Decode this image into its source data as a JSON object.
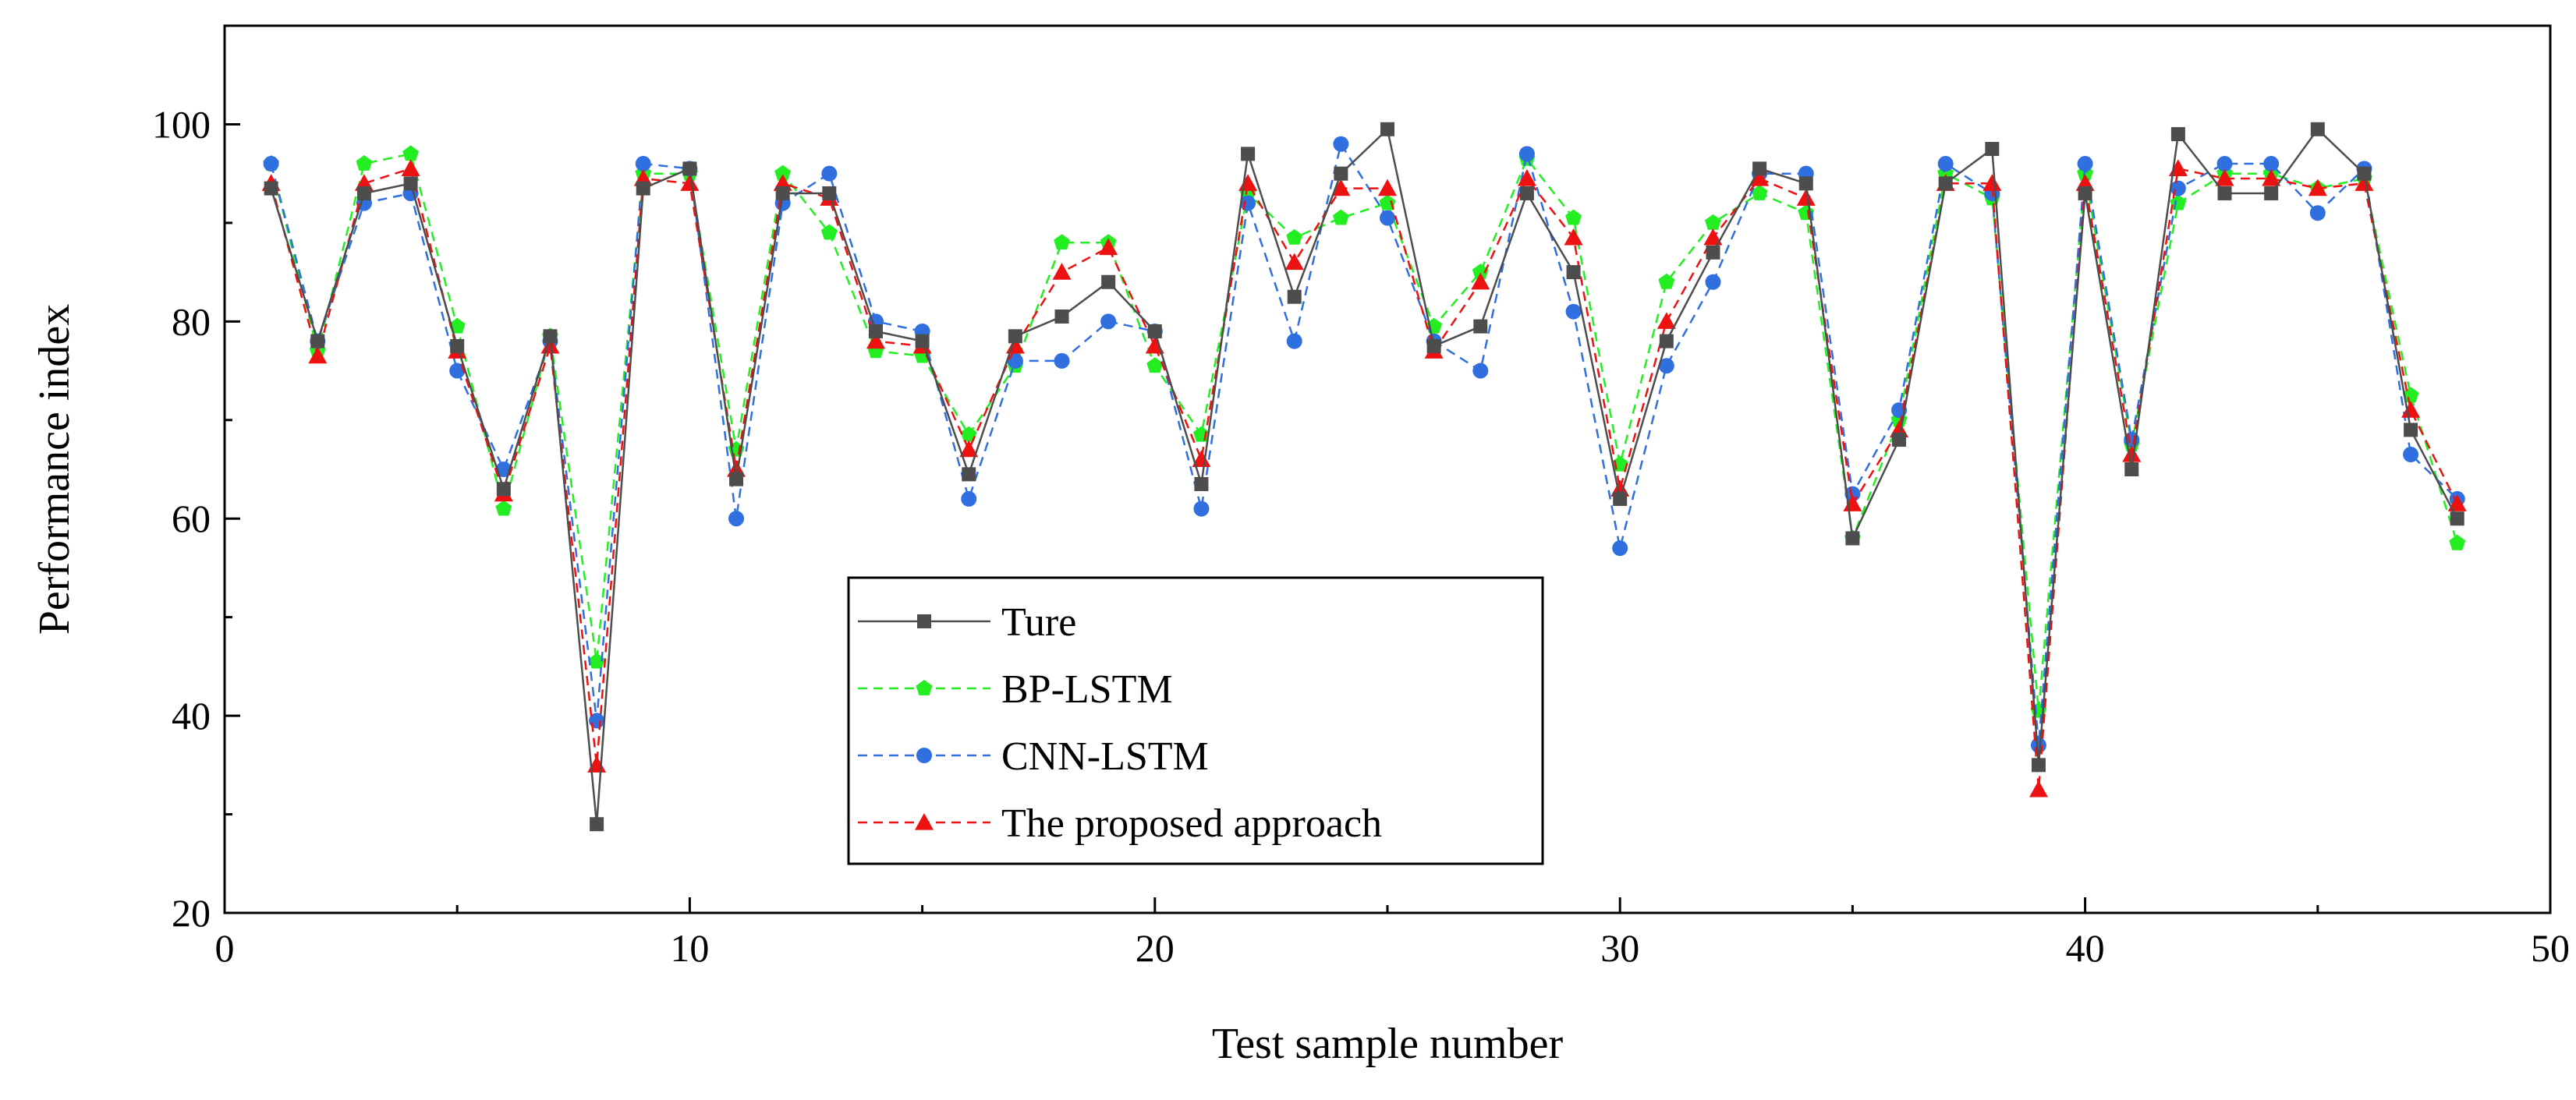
{
  "chart_data": {
    "type": "line",
    "title": "",
    "xlabel": "Test sample number",
    "ylabel": "Performance index",
    "xlim": [
      0,
      50
    ],
    "ylim": [
      20,
      110
    ],
    "xticks": [
      0,
      10,
      20,
      30,
      40,
      50
    ],
    "yticks": [
      20,
      40,
      60,
      80,
      100
    ],
    "grid": false,
    "legend_position": "bottom-center",
    "x": [
      1,
      2,
      3,
      4,
      5,
      6,
      7,
      8,
      9,
      10,
      11,
      12,
      13,
      14,
      15,
      16,
      17,
      18,
      19,
      20,
      21,
      22,
      23,
      24,
      25,
      26,
      27,
      28,
      29,
      30,
      31,
      32,
      33,
      34,
      35,
      36,
      37,
      38,
      39,
      40,
      41,
      42,
      43,
      44,
      45,
      46,
      47,
      48
    ],
    "series": [
      {
        "name": "Ture",
        "color": "#4d4d4d",
        "line_style": "solid",
        "marker": "square",
        "values": [
          93.5,
          78,
          93,
          94,
          77.5,
          63,
          78.5,
          29,
          93.5,
          95.5,
          64,
          93,
          93,
          79,
          78,
          64.5,
          78.5,
          80.5,
          84,
          79,
          63.5,
          97,
          82.5,
          95,
          99.5,
          77.5,
          79.5,
          93,
          85,
          62,
          78,
          87,
          95.5,
          94,
          58,
          68,
          94,
          97.5,
          35,
          93,
          65,
          99,
          93,
          93,
          99.5,
          95,
          69,
          60
        ]
      },
      {
        "name": "BP-LSTM",
        "color": "#22ee22",
        "line_style": "dashed",
        "marker": "pentagon",
        "values": [
          96,
          77,
          96,
          97,
          79.5,
          61,
          78.5,
          45.5,
          95,
          95,
          67,
          95,
          89,
          77,
          76.5,
          68.5,
          75.5,
          88,
          88,
          75.5,
          68.5,
          93,
          88.5,
          90.5,
          92,
          79.5,
          85,
          96.5,
          90.5,
          65.5,
          84,
          90,
          93,
          91,
          58,
          70,
          95,
          92.5,
          40.5,
          95,
          67.5,
          92,
          95,
          95,
          93.5,
          94.5,
          72.5,
          57.5
        ]
      },
      {
        "name": "CNN-LSTM",
        "color": "#2f6fe0",
        "line_style": "dashed",
        "marker": "circle",
        "values": [
          96,
          78,
          92,
          93,
          75,
          65,
          78,
          39.5,
          96,
          95.5,
          60,
          92,
          95,
          80,
          79,
          62,
          76,
          76,
          80,
          79,
          61,
          92,
          78,
          98,
          90.5,
          78,
          75,
          97,
          81,
          57,
          75.5,
          84,
          95,
          95,
          62.5,
          71,
          96,
          93,
          37,
          96,
          68,
          93.5,
          96,
          96,
          91,
          95.5,
          66.5,
          62
        ]
      },
      {
        "name": "The proposed approach",
        "color": "#ee1111",
        "line_style": "dashed",
        "marker": "triangle",
        "values": [
          94,
          76.5,
          94,
          95.5,
          77,
          62.5,
          77.5,
          35,
          94.5,
          94,
          65,
          94,
          92.5,
          78,
          77.5,
          67,
          77.5,
          85,
          87.5,
          77.5,
          66,
          94,
          86,
          93.5,
          93.5,
          77,
          84,
          94.5,
          88.5,
          63,
          80,
          88.5,
          94.5,
          92.5,
          61.5,
          69,
          94,
          94,
          32.5,
          94,
          66.5,
          95.5,
          94.5,
          94.5,
          93.5,
          94,
          71,
          61.5
        ]
      }
    ]
  }
}
